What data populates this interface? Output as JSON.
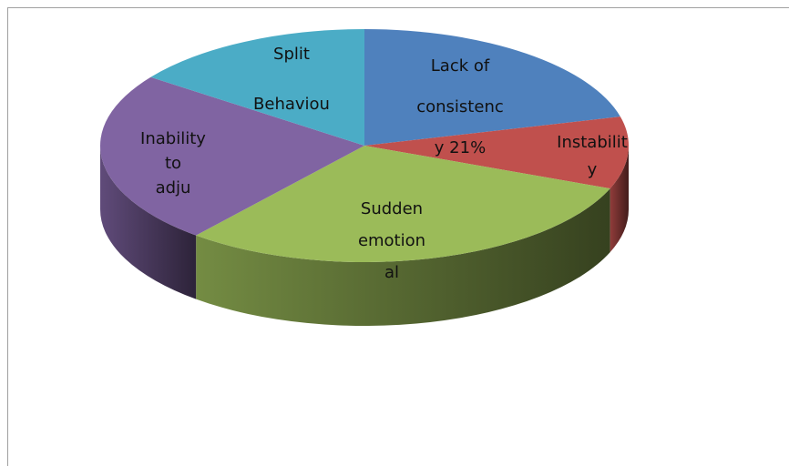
{
  "chart_data": {
    "type": "pie3d",
    "labels": [
      [
        "Lack of",
        "consistenc",
        "y 21%"
      ],
      [
        "Instabilit",
        "y"
      ],
      [
        "Sudden",
        "emotion",
        "al"
      ],
      [
        "Inability",
        "to",
        "adju"
      ],
      [
        "Split",
        "Behaviou"
      ]
    ],
    "values": [
      21,
      10,
      30,
      24,
      15
    ],
    "colors": [
      "#4f81bd",
      "#c0504d",
      "#9bbb59",
      "#8064a2",
      "#4bacc6"
    ]
  }
}
